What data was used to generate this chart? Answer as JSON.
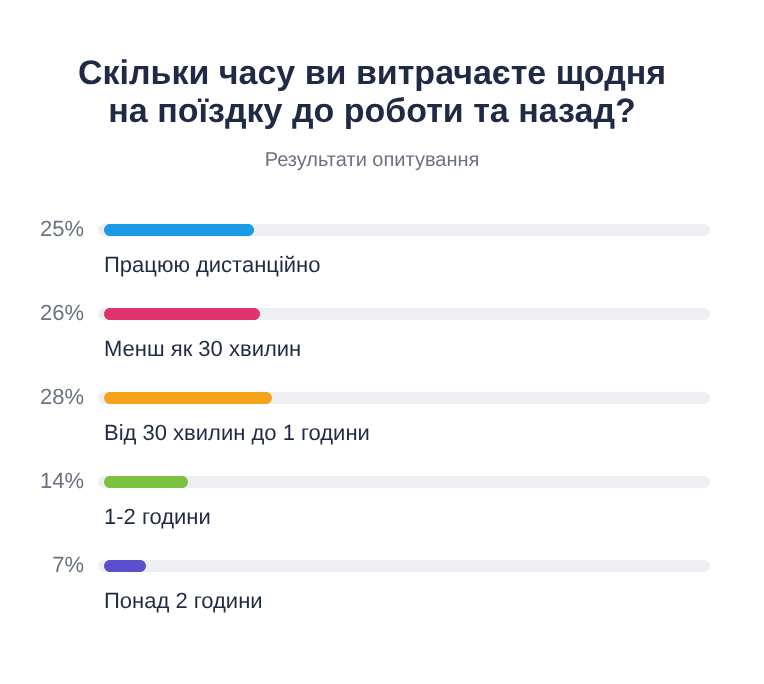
{
  "chart_data": {
    "type": "bar",
    "orientation": "horizontal",
    "title": "Скільки часу ви витрачаєте щодня\nна поїздку до роботи та назад?",
    "subtitle": "Результати опитування",
    "categories": [
      "Працюю дистанційно",
      "Менш як 30 хвилин",
      "Від 30 хвилин до 1 години",
      "1-2 години",
      "Понад 2 години"
    ],
    "values": [
      25,
      26,
      28,
      14,
      7
    ],
    "colors": [
      "#1a9be6",
      "#e0336e",
      "#f7a21b",
      "#7cc242",
      "#5a4fcf"
    ],
    "value_labels": [
      "25%",
      "26%",
      "28%",
      "14%",
      "7%"
    ],
    "xlim": [
      0,
      100
    ]
  }
}
